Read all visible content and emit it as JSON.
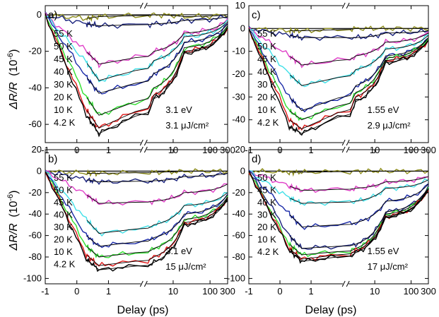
{
  "figure": {
    "xlabel": "Delay (ps)",
    "ylabel_main": "ΔR/R",
    "ylabel_unit": "(10",
    "ylabel_exp": "-6",
    "ylabel_close": ")"
  },
  "chart_data": [
    {
      "type": "line",
      "panel": "a)",
      "x_axis": "split: linear -1 to 2 ps, log 2 to 300 ps",
      "xticks": [
        "-1",
        "0",
        "1",
        "10",
        "100",
        "300"
      ],
      "ylim": [
        -70,
        5
      ],
      "yticks": [
        0,
        -20,
        -40,
        -60
      ],
      "photon_energy": "3.1 eV",
      "fluence": "3.1 μJ/cm²",
      "series": [
        {
          "name": "55 K",
          "color": "#8b8b1a",
          "values": [
            0,
            -2,
            -1,
            0,
            -1,
            0
          ]
        },
        {
          "name": "50 K",
          "color": "#1a237e",
          "values": [
            0,
            -5,
            -6,
            -5,
            -3,
            -1
          ]
        },
        {
          "name": "45 K",
          "color": "#e040c8",
          "values": [
            0,
            -20,
            -27,
            -20,
            -10,
            -3
          ]
        },
        {
          "name": "40 K",
          "color": "#40e0e8",
          "values": [
            0,
            -26,
            -36,
            -25,
            -12,
            -4
          ]
        },
        {
          "name": "30 K",
          "color": "#1a2aa8",
          "values": [
            0,
            -34,
            -43,
            -32,
            -15,
            -5
          ]
        },
        {
          "name": "20 K",
          "color": "#30e030",
          "values": [
            0,
            -45,
            -55,
            -40,
            -18,
            -6
          ]
        },
        {
          "name": "10 K",
          "color": "#e01818",
          "values": [
            0,
            -52,
            -62,
            -44,
            -20,
            -7
          ]
        },
        {
          "name": "4.2 K",
          "color": "#000000",
          "values": [
            0,
            -55,
            -65,
            -46,
            -21,
            -7
          ]
        }
      ],
      "x": [
        -1,
        0.3,
        0.7,
        3,
        20,
        300
      ]
    },
    {
      "type": "line",
      "panel": "c)",
      "ylim": [
        -50,
        10
      ],
      "yticks": [
        10,
        0,
        -10,
        -20,
        -30,
        -40
      ],
      "xticks": [
        "-1",
        "0",
        "1",
        "10",
        "100",
        "300"
      ],
      "photon_energy": "1.55 eV",
      "fluence": "2.9 μJ/cm²",
      "series": [
        {
          "name": "55 K",
          "color": "#8b8b1a",
          "values": [
            0,
            -1,
            -1,
            0,
            0,
            0
          ]
        },
        {
          "name": "50 K",
          "color": "#1a237e",
          "values": [
            0,
            -3,
            -4,
            -4,
            -2,
            -1
          ]
        },
        {
          "name": "45 K",
          "color": "#e040c8",
          "values": [
            0,
            -12,
            -16,
            -12,
            -6,
            -2
          ]
        },
        {
          "name": "40 K",
          "color": "#40e0e8",
          "values": [
            0,
            -20,
            -25,
            -18,
            -9,
            -3
          ]
        },
        {
          "name": "30 K",
          "color": "#1a2aa8",
          "values": [
            0,
            -30,
            -36,
            -25,
            -12,
            -4
          ]
        },
        {
          "name": "20 K",
          "color": "#30e030",
          "values": [
            0,
            -36,
            -40,
            -28,
            -13,
            -4
          ]
        },
        {
          "name": "10 K",
          "color": "#e01818",
          "values": [
            0,
            -40,
            -44,
            -30,
            -14,
            -5
          ]
        },
        {
          "name": "4.2 K",
          "color": "#000000",
          "values": [
            0,
            -43,
            -46,
            -32,
            -15,
            -5
          ]
        }
      ],
      "x": [
        -1,
        0.3,
        0.7,
        3,
        20,
        300
      ]
    },
    {
      "type": "line",
      "panel": "b)",
      "ylim": [
        -105,
        20
      ],
      "yticks": [
        20,
        0,
        -20,
        -40,
        -60,
        -80,
        -100
      ],
      "xticks": [
        "-1",
        "0",
        "1",
        "10",
        "100",
        "300"
      ],
      "photon_energy": "3.1 eV",
      "fluence": "15 μJ/cm²",
      "series": [
        {
          "name": "55 K",
          "color": "#8b8b1a",
          "values": [
            0,
            -2,
            -2,
            -1,
            0,
            0
          ]
        },
        {
          "name": "50 K",
          "color": "#1a237e",
          "values": [
            0,
            -8,
            -10,
            -9,
            -5,
            -2
          ]
        },
        {
          "name": "45 K",
          "color": "#e040c8",
          "values": [
            0,
            -22,
            -30,
            -28,
            -20,
            -12
          ]
        },
        {
          "name": "40 K",
          "color": "#40e0e8",
          "values": [
            0,
            -45,
            -58,
            -50,
            -32,
            -20
          ]
        },
        {
          "name": "30 K",
          "color": "#1a2aa8",
          "values": [
            0,
            -60,
            -70,
            -62,
            -40,
            -22
          ]
        },
        {
          "name": "20 K",
          "color": "#30e030",
          "values": [
            0,
            -70,
            -80,
            -72,
            -45,
            -24
          ]
        },
        {
          "name": "10 K",
          "color": "#e01818",
          "values": [
            0,
            -78,
            -88,
            -80,
            -48,
            -25
          ]
        },
        {
          "name": "4.2 K",
          "color": "#000000",
          "values": [
            0,
            -82,
            -92,
            -85,
            -50,
            -26
          ]
        }
      ],
      "x": [
        -1,
        0.3,
        0.7,
        3,
        20,
        300
      ]
    },
    {
      "type": "line",
      "panel": "d)",
      "ylim": [
        -105,
        20
      ],
      "yticks": [
        20,
        0,
        -20,
        -40,
        -60,
        -80,
        -100
      ],
      "xticks": [
        "-1",
        "0",
        "1",
        "10",
        "100",
        "300"
      ],
      "photon_energy": "1.55 eV",
      "fluence": "17 μJ/cm²",
      "series": [
        {
          "name": "",
          "color": "#8b8b1a",
          "values": [
            0,
            -1,
            -1,
            0,
            0,
            0
          ]
        },
        {
          "name": "50 K",
          "color": "#e040c8",
          "values": [
            0,
            -14,
            -18,
            -16,
            -10,
            -5
          ]
        },
        {
          "name": "45 K",
          "color": "#40e0e8",
          "values": [
            0,
            -25,
            -30,
            -28,
            -16,
            -8
          ]
        },
        {
          "name": "40 K",
          "color": "#1a2aa8",
          "values": [
            0,
            -40,
            -52,
            -48,
            -28,
            -12
          ]
        },
        {
          "name": "30 K",
          "color": "#1a237e",
          "values": [
            0,
            -60,
            -72,
            -68,
            -38,
            -15
          ]
        },
        {
          "name": "20 K",
          "color": "#30e030",
          "values": [
            0,
            -68,
            -78,
            -72,
            -40,
            -16
          ]
        },
        {
          "name": "10 K",
          "color": "#e01818",
          "values": [
            0,
            -72,
            -82,
            -74,
            -42,
            -17
          ]
        },
        {
          "name": "4.2 K",
          "color": "#000000",
          "values": [
            0,
            -74,
            -84,
            -76,
            -43,
            -17
          ]
        }
      ],
      "x": [
        -1,
        0.3,
        0.7,
        3,
        20,
        300
      ]
    }
  ]
}
